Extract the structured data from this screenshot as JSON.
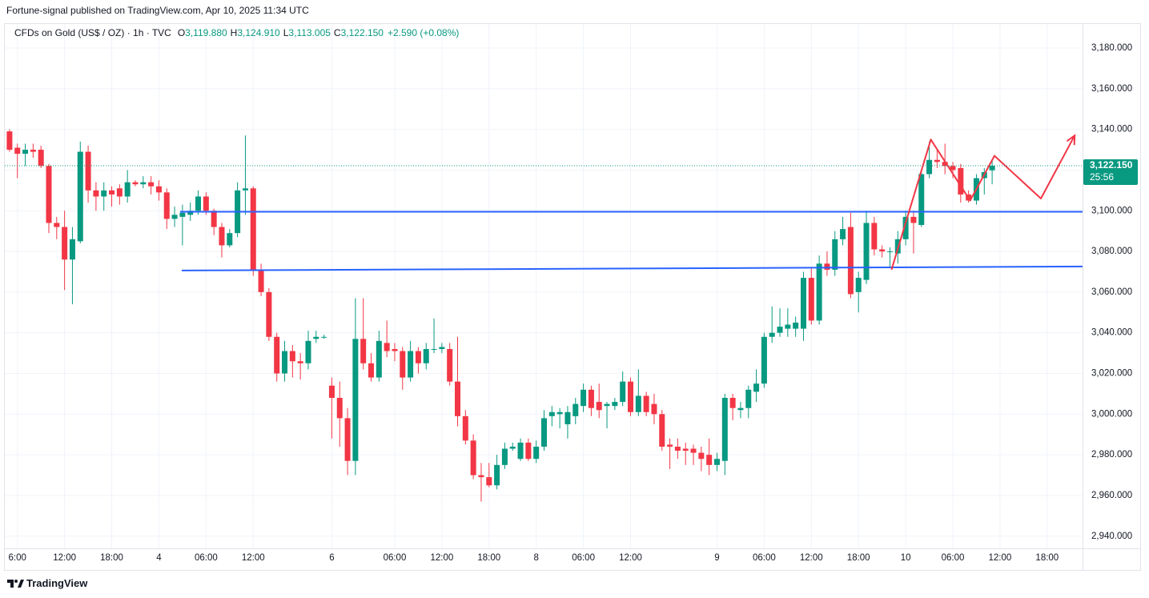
{
  "header": {
    "publisher": "Fortune-signal published on TradingView.com, Apr 10, 2025 11:34 UTC",
    "footer": "TradingView"
  },
  "chart_data": {
    "type": "candlestick",
    "symbol": "CFDs on Gold (US$ / OZ) · 1h · TVC",
    "legend": [
      {
        "key": "O",
        "text": "3,119.880"
      },
      {
        "key": "H",
        "text": "3,124.910"
      },
      {
        "key": "L",
        "text": "3,113.005"
      },
      {
        "key": "C",
        "text": "3,122.150"
      }
    ],
    "change": "+2.590 (+0.08%)",
    "up_color": "#089981",
    "down_color": "#f23645",
    "categories": [
      null,
      "6:00",
      null,
      null,
      null,
      null,
      null,
      "12:00",
      null,
      null,
      null,
      null,
      null,
      "18:00",
      null,
      null,
      null,
      null,
      null,
      "4",
      null,
      null,
      null,
      null,
      null,
      "06:00",
      null,
      null,
      null,
      null,
      null,
      "12:00",
      null,
      null,
      null,
      null,
      null,
      null,
      null,
      null,
      null,
      "6",
      null,
      null,
      null,
      null,
      null,
      null,
      null,
      "06:00",
      null,
      null,
      null,
      null,
      null,
      "12:00",
      null,
      null,
      null,
      null,
      null,
      "18:00",
      null,
      null,
      null,
      null,
      null,
      "8",
      null,
      null,
      null,
      null,
      null,
      "06:00",
      null,
      null,
      null,
      null,
      null,
      "12:00",
      null,
      null,
      null,
      null,
      null,
      null,
      null,
      null,
      null,
      null,
      "9",
      null,
      null,
      null,
      null,
      null,
      "06:00",
      null,
      null,
      null,
      null,
      null,
      "12:00",
      null,
      null,
      null,
      null,
      null,
      "18:00",
      null,
      null,
      null,
      null,
      null,
      "10",
      null,
      null,
      null,
      null,
      null,
      "06:00",
      null,
      null,
      null,
      null,
      null,
      "12:00",
      null,
      null,
      null,
      null,
      null,
      "18:00",
      null,
      null,
      null,
      null
    ],
    "open": [
      3139,
      3131,
      3128,
      3130,
      3130,
      3122,
      3094,
      3092,
      3076,
      3085,
      3129,
      3110,
      3107,
      3110,
      3111,
      3107,
      3114,
      3113,
      3114,
      3112,
      3109,
      3096,
      3097,
      3098,
      3100,
      3107,
      3100,
      3092,
      3083,
      3089,
      3110,
      3111,
      3071,
      3060,
      3038,
      3020,
      3031,
      3026,
      3025,
      3037,
      3038,
      3014,
      3008,
      2998,
      2977,
      3037,
      3025,
      3018,
      3035,
      3032,
      3031,
      3018,
      3031,
      3025,
      3032,
      3032,
      3032,
      3016,
      2999,
      2987,
      2970,
      2969,
      2965,
      2975,
      2983,
      2978,
      2986,
      2978,
      2984,
      2999,
      3000,
      2995,
      2999,
      3004,
      3012,
      3006,
      3004,
      3004,
      3006,
      3016,
      3001,
      3009,
      3005,
      3000,
      2985,
      2984,
      2983,
      2983,
      2981,
      2980,
      2975,
      2977,
      3008,
      3002,
      3003,
      3011,
      3015,
      3038,
      3040,
      3042,
      3042,
      3042,
      3067,
      3046,
      3074,
      3071,
      3086,
      3092,
      3060,
      3066,
      3094,
      3081,
      3080,
      3079,
      3086,
      3097,
      3093,
      3118,
      3125,
      3124,
      3122,
      3121,
      3108,
      3105,
      3116,
      3119.88,
      null,
      null,
      null,
      null,
      null,
      null,
      null,
      null,
      null,
      null,
      null
    ],
    "high": [
      3140,
      3133,
      3133,
      3133,
      3132,
      3123,
      3097,
      3100,
      3092,
      3134,
      3132,
      3114,
      3114,
      3112,
      3113,
      3120,
      3115,
      3117,
      3117,
      3115,
      3111,
      3102,
      3103,
      3104,
      3110,
      3109,
      3101,
      3094,
      3091,
      3114,
      3137,
      3112,
      3074,
      3062,
      3040,
      3036,
      3034,
      3030,
      3041,
      3041,
      3039,
      3018,
      3016,
      3003,
      3057,
      3057,
      3030,
      3041,
      3046,
      3035,
      3033,
      3036,
      3033,
      3035,
      3047,
      3035,
      3035,
      3038,
      3002,
      2990,
      2976,
      2976,
      2980,
      2986,
      2986,
      2988,
      2988,
      2987,
      3002,
      3004,
      3003,
      3004,
      3008,
      3015,
      3014,
      3015,
      3006,
      3008,
      3021,
      3018,
      3022,
      3011,
      3010,
      3002,
      2988,
      2988,
      2986,
      2985,
      2984,
      2988,
      2981,
      3010,
      3010,
      3006,
      3014,
      3022,
      3040,
      3053,
      3052,
      3052,
      3048,
      3070,
      3072,
      3078,
      3080,
      3090,
      3097,
      3099,
      3070,
      3100,
      3097,
      3083,
      3082,
      3090,
      3100,
      3100,
      3120,
      3134,
      3130,
      3133,
      3124,
      3123,
      3110,
      3118,
      3121,
      3124.91,
      null,
      null,
      null,
      null,
      null,
      null,
      null,
      null,
      null,
      null,
      null
    ],
    "low": [
      3129,
      3116,
      3122,
      3126,
      3121,
      3089,
      3086,
      3061,
      3054,
      3084,
      3104,
      3100,
      3100,
      3102,
      3103,
      3104,
      3112,
      3111,
      3108,
      3105,
      3091,
      3092,
      3083,
      3095,
      3098,
      3098,
      3088,
      3077,
      3082,
      3087,
      3098,
      3068,
      3058,
      3036,
      3016,
      3016,
      3018,
      3017,
      3022,
      3035,
      3037,
      2988,
      2984,
      2970,
      2970,
      3022,
      3016,
      3016,
      3028,
      3026,
      3012,
      3016,
      3020,
      3022,
      3030,
      3030,
      3014,
      2994,
      2985,
      2968,
      2957,
      2964,
      2963,
      2973,
      2982,
      2977,
      2977,
      2976,
      2982,
      2994,
      2993,
      2988,
      2995,
      3001,
      2999,
      2998,
      2993,
      3002,
      3004,
      2999,
      2999,
      2999,
      2995,
      2982,
      2973,
      2978,
      2975,
      2975,
      2972,
      2970,
      2972,
      2970,
      2997,
      2998,
      2998,
      3006,
      3013,
      3035,
      3038,
      3038,
      3038,
      3036,
      3044,
      3044,
      3068,
      3068,
      3083,
      3057,
      3050,
      3064,
      3078,
      3077,
      3072,
      3074,
      3083,
      3079,
      3092,
      3116,
      3121,
      3118,
      3116,
      3104,
      3104,
      3103,
      3108,
      3113.005,
      null,
      null,
      null,
      null,
      null,
      null,
      null,
      null,
      null,
      null,
      null
    ],
    "close": [
      3130,
      3128,
      3130,
      3129,
      3122,
      3094,
      3092,
      3076,
      3086,
      3129,
      3110,
      3107,
      3110,
      3108,
      3107,
      3114,
      3113,
      3114,
      3112,
      3109,
      3096,
      3098,
      3099,
      3100,
      3107,
      3100,
      3092,
      3083,
      3089,
      3110,
      3111,
      3071,
      3060,
      3038,
      3020,
      3031,
      3026,
      3025,
      3036,
      3038,
      3038,
      3008,
      2998,
      2977,
      3037,
      3025,
      3018,
      3036,
      3031,
      3031,
      3018,
      3031,
      3025,
      3032,
      3032,
      3033,
      3016,
      2999,
      2987,
      2970,
      2969,
      2965,
      2975,
      2983,
      2984,
      2986,
      2978,
      2984,
      2998,
      3001,
      3001,
      3001,
      3005,
      3012,
      3003,
      3002,
      3005,
      3006,
      3016,
      3001,
      3009,
      3001,
      3000,
      2984,
      2984,
      2982,
      2982,
      2981,
      2978,
      2975,
      2978,
      3008,
      3003,
      3003,
      3012,
      3015,
      3038,
      3040,
      3043,
      3044,
      3045,
      3067,
      3046,
      3074,
      3071,
      3086,
      3091,
      3059,
      3067,
      3094,
      3081,
      3080,
      3080,
      3086,
      3097,
      3094,
      3118,
      3125,
      3124,
      3122,
      3120,
      3108,
      3105,
      3116,
      3119,
      3122.15,
      null,
      null,
      null,
      null,
      null,
      null,
      null,
      null,
      null,
      null,
      null
    ],
    "ylim": [
      2934,
      3191.8
    ],
    "yticks": [
      {
        "value": 2940,
        "label": "2,940.000"
      },
      {
        "value": 2960,
        "label": "2,960.000"
      },
      {
        "value": 2980,
        "label": "2,980.000"
      },
      {
        "value": 3000,
        "label": "3,000.000"
      },
      {
        "value": 3020,
        "label": "3,020.000"
      },
      {
        "value": 3040,
        "label": "3,040.000"
      },
      {
        "value": 3060,
        "label": "3,060.000"
      },
      {
        "value": 3080,
        "label": "3,080.000"
      },
      {
        "value": 3100,
        "label": "3,100.000"
      },
      {
        "value": 3120,
        "label": "3,120.000"
      },
      {
        "value": 3140,
        "label": "3,140.000"
      },
      {
        "value": 3160,
        "label": "3,160.000"
      },
      {
        "value": 3180,
        "label": "3,180.000"
      }
    ],
    "grid": true,
    "last_price": {
      "value": 3122.15,
      "label": "3,122.150"
    },
    "countdown": "25:56",
    "drawings": [
      {
        "color": "#2962ff",
        "x": [
          21.7,
          136.5
        ],
        "y": [
          3099.5,
          3099.5
        ]
      },
      {
        "color": "#2962ff",
        "x": [
          21.9,
          136.5
        ],
        "y": [
          3070.6,
          3072.6
        ]
      },
      {
        "color": "#f23645",
        "arrow": true,
        "x": [
          112.2,
          117.2,
          122.2,
          125.3,
          131.2,
          135.5
        ],
        "y": [
          3071,
          3135,
          3105,
          3127,
          3106,
          3137
        ]
      }
    ]
  }
}
